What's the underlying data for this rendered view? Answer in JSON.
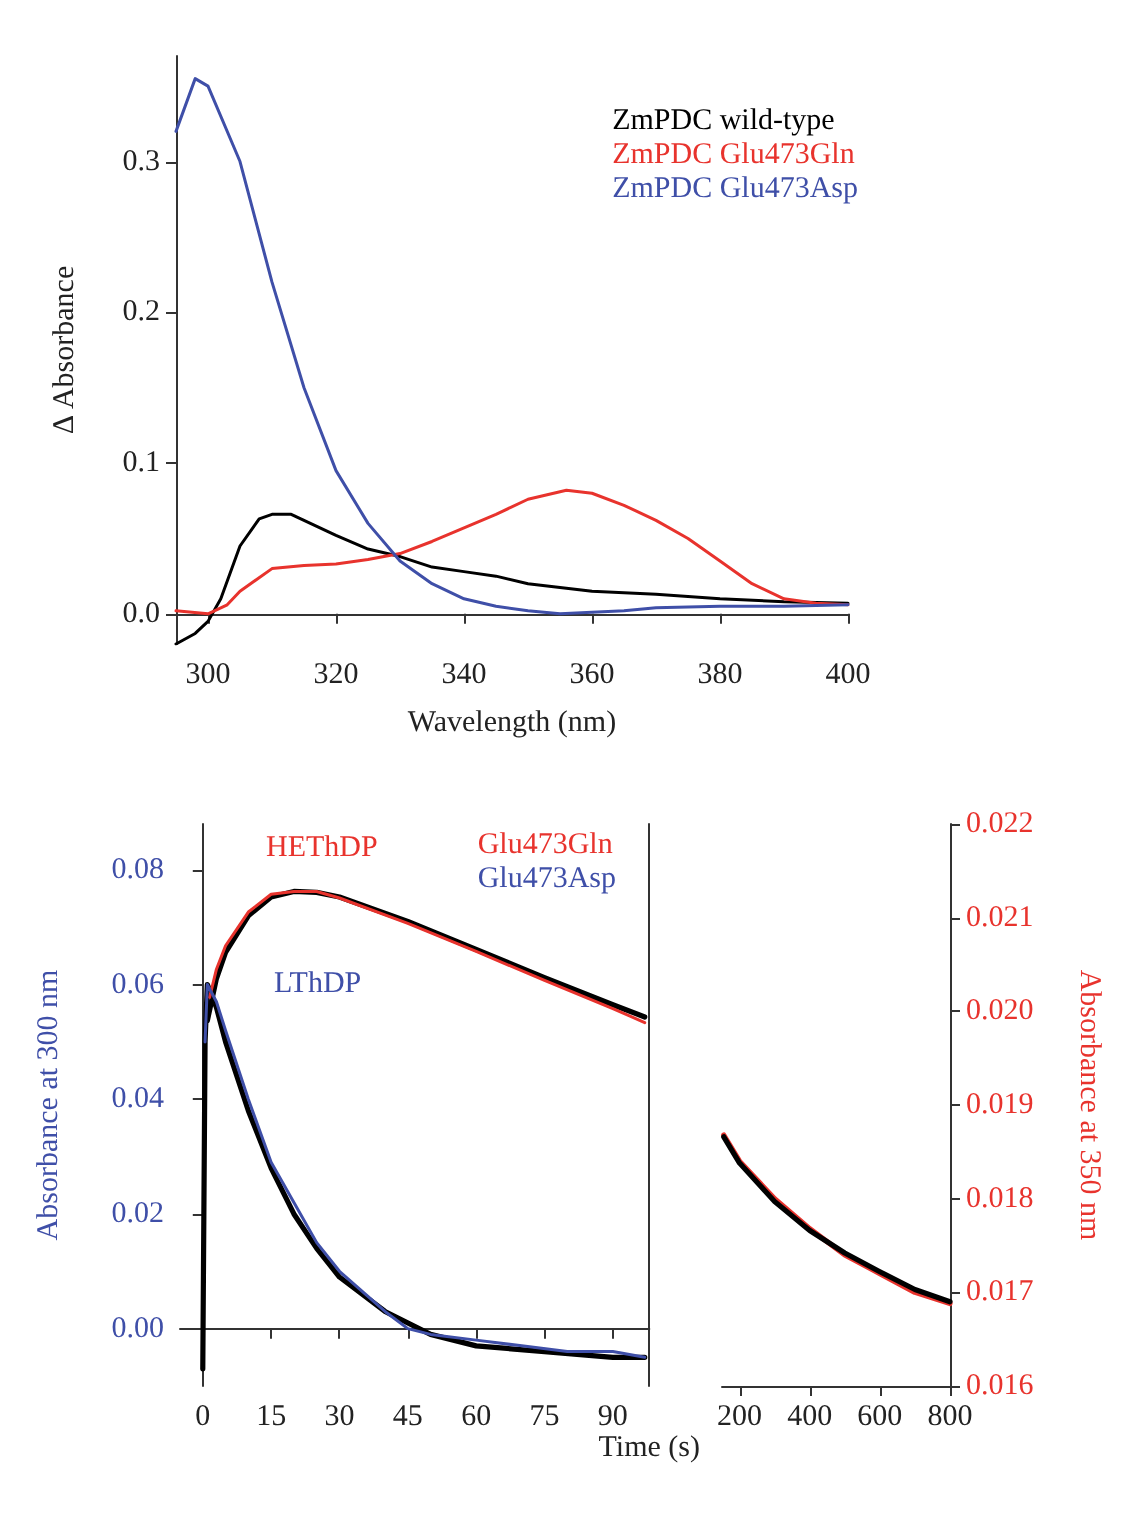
{
  "chart_data": [
    {
      "type": "line",
      "xlabel": "Wavelength (nm)",
      "ylabel": "Δ Absorbance",
      "xlim": [
        295,
        400
      ],
      "xticks": [
        300,
        320,
        340,
        360,
        380,
        400
      ],
      "ylim": [
        -0.02,
        0.37
      ],
      "yticks": [
        {
          "value": 0,
          "label": "0.0"
        },
        0.1,
        0.2,
        0.3
      ],
      "legend": "top right",
      "grid": false,
      "marker": "none",
      "series": [
        {
          "name": "ZmPDC wild-type",
          "color": "#000000",
          "x": [
            295,
            298,
            300,
            302,
            305,
            308,
            310,
            313,
            316,
            320,
            325,
            330,
            335,
            340,
            345,
            350,
            360,
            370,
            380,
            390,
            400
          ],
          "values": [
            -0.02,
            -0.013,
            -0.005,
            0.01,
            0.045,
            0.063,
            0.066,
            0.066,
            0.06,
            0.052,
            0.043,
            0.038,
            0.031,
            0.028,
            0.025,
            0.02,
            0.015,
            0.013,
            0.01,
            0.008,
            0.007
          ]
        },
        {
          "name": "ZmPDC Glu473Gln",
          "color": "#e8332d",
          "x": [
            295,
            300,
            303,
            305,
            310,
            315,
            320,
            325,
            330,
            335,
            340,
            345,
            350,
            356,
            360,
            365,
            370,
            375,
            380,
            385,
            390,
            395,
            400
          ],
          "values": [
            0.002,
            0.0,
            0.006,
            0.015,
            0.03,
            0.032,
            0.033,
            0.036,
            0.04,
            0.048,
            0.057,
            0.066,
            0.076,
            0.082,
            0.08,
            0.072,
            0.062,
            0.05,
            0.035,
            0.02,
            0.01,
            0.007,
            0.006
          ]
        },
        {
          "name": "ZmPDC Glu473Asp",
          "color": "#3f4fa8",
          "x": [
            295,
            298,
            300,
            305,
            310,
            315,
            320,
            325,
            330,
            335,
            340,
            345,
            350,
            355,
            360,
            365,
            370,
            380,
            390,
            400
          ],
          "values": [
            0.32,
            0.355,
            0.35,
            0.3,
            0.22,
            0.15,
            0.095,
            0.06,
            0.035,
            0.02,
            0.01,
            0.005,
            0.002,
            0.0,
            0.001,
            0.002,
            0.004,
            0.005,
            0.005,
            0.006
          ]
        }
      ]
    },
    {
      "type": "line",
      "xlabel": "Time (s)",
      "ylabel": "Absorbance at 300 nm",
      "xlim": [
        -5,
        98
      ],
      "xticks": [
        0,
        15,
        30,
        45,
        60,
        75,
        90
      ],
      "ylim": [
        -0.01,
        0.088
      ],
      "yticks": [
        {
          "value": 0,
          "label": "0.00"
        },
        0.02,
        0.04,
        0.06,
        0.08
      ],
      "y2lim": [
        0.016,
        0.022
      ],
      "tick_labels": "xy",
      "legend": "top right",
      "grid": false,
      "marker": "none",
      "annotations": [
        "HEThDP",
        "LThDP"
      ],
      "series": [
        {
          "name": "Glu473Gln",
          "color": "#e8332d",
          "axis": "y2",
          "x": [
            1.5,
            3,
            5,
            10,
            15,
            20,
            25,
            30,
            45,
            60,
            75,
            90,
            97
          ],
          "values": [
            0.02015,
            0.02045,
            0.0207,
            0.02106,
            0.02125,
            0.02128,
            0.02128,
            0.02121,
            0.02094,
            0.02064,
            0.02033,
            0.02003,
            0.01988
          ]
        },
        {
          "name": "Glu473Asp",
          "color": "#3f4fa8",
          "x": [
            0.5,
            1,
            3,
            5,
            10,
            15,
            20,
            25,
            30,
            40,
            45,
            50,
            60,
            70,
            80,
            90,
            97
          ],
          "values": [
            0.05,
            0.06,
            0.057,
            0.052,
            0.04,
            0.029,
            0.022,
            0.015,
            0.01,
            0.003,
            0.0,
            -0.001,
            -0.002,
            -0.003,
            -0.004,
            -0.004,
            -0.005
          ]
        },
        {
          "color": "#000000",
          "axis": "y2",
          "x": [
            1,
            3,
            5,
            10,
            15,
            20,
            25,
            30,
            45,
            60,
            75,
            90,
            97
          ],
          "values": [
            0.0199,
            0.02035,
            0.02063,
            0.02102,
            0.02122,
            0.02128,
            0.02127,
            0.02122,
            0.02096,
            0.02066,
            0.02036,
            0.02007,
            0.01994
          ]
        },
        {
          "color": "#000000",
          "x": [
            0,
            0.5,
            1,
            3,
            5,
            10,
            15,
            20,
            25,
            30,
            40,
            50,
            60,
            75,
            90,
            97
          ],
          "values": [
            -0.007,
            0.05,
            0.06,
            0.056,
            0.05,
            0.038,
            0.028,
            0.02,
            0.014,
            0.009,
            0.003,
            -0.001,
            -0.003,
            -0.004,
            -0.005,
            -0.005
          ]
        }
      ]
    },
    {
      "type": "line",
      "y2label": "Absorbance at 350 nm",
      "xlim": [
        150,
        800
      ],
      "xticks": [
        200,
        400,
        600,
        800
      ],
      "y2lim": [
        0.016,
        0.022
      ],
      "y2ticks": [
        0.016,
        0.017,
        0.018,
        0.019,
        {
          "value": 0.02,
          "label": "0.020"
        },
        0.021,
        0.022
      ],
      "grid": false,
      "marker": "none",
      "series": [
        {
          "color": "#e8332d",
          "axis": "y2",
          "x": [
            155,
            200,
            300,
            400,
            500,
            600,
            700,
            800
          ],
          "values": [
            0.01868,
            0.0184,
            0.018,
            0.01768,
            0.0174,
            0.0172,
            0.017,
            0.01688
          ]
        },
        {
          "color": "#000000",
          "axis": "y2",
          "x": [
            155,
            200,
            300,
            400,
            500,
            600,
            700,
            800
          ],
          "values": [
            0.01866,
            0.01838,
            0.01797,
            0.01766,
            0.01742,
            0.01722,
            0.01703,
            0.0169
          ]
        }
      ]
    }
  ]
}
